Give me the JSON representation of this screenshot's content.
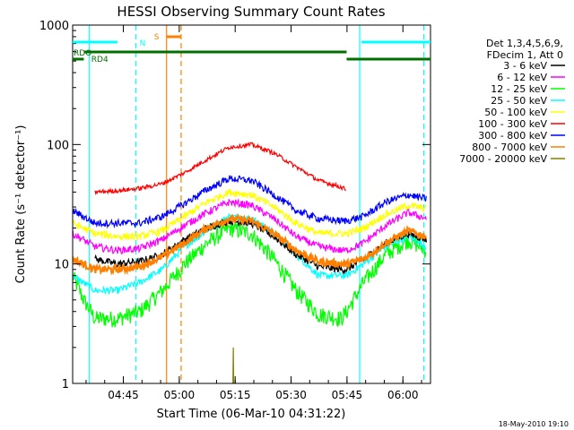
{
  "chart_data": {
    "type": "line",
    "title": "HESSI Observing Summary Count Rates",
    "xlabel": "Start Time (06-Mar-10 04:31:22)",
    "ylabel": "Count Rate (s⁻¹ detector⁻¹)",
    "xaxis_unit": "minutes after 04:31:22",
    "xlim": [
      0,
      96
    ],
    "ylim": [
      1,
      1000
    ],
    "yscale": "log",
    "x_ticks": [
      {
        "label": "04:45",
        "value": 13.6
      },
      {
        "label": "05:00",
        "value": 28.6
      },
      {
        "label": "05:15",
        "value": 43.6
      },
      {
        "label": "05:30",
        "value": 58.6
      },
      {
        "label": "05:45",
        "value": 73.6
      },
      {
        "label": "06:00",
        "value": 88.6
      }
    ],
    "y_ticks": [
      {
        "label": "1",
        "value": 1
      },
      {
        "label": "10",
        "value": 10
      },
      {
        "label": "100",
        "value": 100
      },
      {
        "label": "1000",
        "value": 1000
      }
    ],
    "legend": {
      "position": "right",
      "header": [
        "Det 1,3,4,5,6,9,",
        "FDecim 1, Att 0"
      ]
    },
    "series": [
      {
        "name": "3 - 6 keV",
        "color": "#000000",
        "x": [
          6,
          12,
          18,
          24,
          30,
          36,
          42,
          48,
          54,
          60,
          66,
          72,
          73.5,
          78,
          84,
          90,
          95
        ],
        "y": [
          11,
          10,
          10.5,
          12,
          16,
          20,
          23,
          22,
          17,
          12,
          9.5,
          9,
          9,
          11,
          15,
          18,
          16
        ]
      },
      {
        "name": "6 - 12 keV",
        "color": "#ff00ff",
        "x": [
          0,
          6,
          12,
          18,
          24,
          30,
          36,
          42,
          48,
          54,
          60,
          66,
          72,
          73.5,
          78,
          84,
          90,
          95
        ],
        "y": [
          18,
          14,
          13,
          13.5,
          16,
          21,
          27,
          33,
          31,
          24,
          17,
          14,
          13,
          13,
          15,
          21,
          27,
          24
        ]
      },
      {
        "name": "12 - 25 keV",
        "color": "#00ff00",
        "x": [
          0,
          3,
          6,
          12,
          18,
          24,
          30,
          36,
          42,
          48,
          54,
          60,
          66,
          72,
          73.5,
          78,
          84,
          90,
          95
        ],
        "y": [
          8,
          5,
          3.5,
          3.5,
          4,
          6,
          10,
          15,
          20,
          18,
          11,
          6,
          3.8,
          3.5,
          4,
          7,
          12,
          16,
          13
        ]
      },
      {
        "name": "25 - 50 keV",
        "color": "#00ffff",
        "x": [
          0,
          6,
          12,
          18,
          24,
          30,
          36,
          42,
          48,
          54,
          60,
          66,
          72,
          73.5,
          78,
          84,
          90,
          95
        ],
        "y": [
          8,
          6,
          6,
          7,
          9,
          14,
          19,
          25,
          24,
          18,
          12,
          8,
          8,
          8,
          10,
          14,
          17,
          14
        ]
      },
      {
        "name": "50 - 100 keV",
        "color": "#ffff00",
        "x": [
          0,
          6,
          12,
          18,
          24,
          30,
          36,
          42,
          48,
          54,
          60,
          66,
          72,
          73.5,
          78,
          84,
          90,
          95
        ],
        "y": [
          22,
          18,
          17,
          17,
          19,
          25,
          33,
          40,
          38,
          30,
          22,
          18,
          18,
          18,
          20,
          26,
          31,
          29
        ]
      },
      {
        "name": "100 - 300 keV",
        "color": "#ff0000",
        "x": [
          6,
          12,
          18,
          24,
          30,
          36,
          42,
          48,
          54,
          60,
          66,
          72,
          73.5
        ],
        "y": [
          40,
          41,
          43,
          47,
          58,
          75,
          95,
          100,
          85,
          65,
          50,
          44,
          42
        ]
      },
      {
        "name": "300 - 800 keV",
        "color": "#0000ff",
        "x": [
          0,
          6,
          12,
          18,
          24,
          30,
          36,
          42,
          48,
          54,
          60,
          66,
          72,
          73.5,
          78,
          84,
          90,
          95
        ],
        "y": [
          28,
          22,
          22,
          22,
          25,
          32,
          42,
          52,
          50,
          38,
          28,
          24,
          23,
          23,
          25,
          33,
          38,
          35
        ]
      },
      {
        "name": "800 - 7000 keV",
        "color": "#ff8000",
        "x": [
          0,
          6,
          12,
          18,
          24,
          30,
          36,
          42,
          48,
          54,
          60,
          66,
          72,
          73.5,
          78,
          84,
          90,
          95
        ],
        "y": [
          11,
          9,
          9,
          9.5,
          11.5,
          15,
          20,
          24,
          23,
          18,
          13,
          10.5,
          10,
          10,
          11,
          15,
          19,
          17
        ]
      },
      {
        "name": "7000 - 20000 keV",
        "color": "#808000",
        "x": [
          43,
          43.1,
          43.2
        ],
        "y": [
          1,
          2,
          1
        ]
      }
    ],
    "annotations": [
      {
        "label": "N",
        "color": "#00ffff",
        "x": 17
      },
      {
        "label": "S",
        "color": "#ff8000",
        "x": 26.5
      },
      {
        "label": "RDO",
        "color": "#007000",
        "x": 0
      },
      {
        "label": "RD4",
        "color": "#007000",
        "x": 0
      }
    ],
    "footer_date": "18-May-2010 19:10"
  }
}
